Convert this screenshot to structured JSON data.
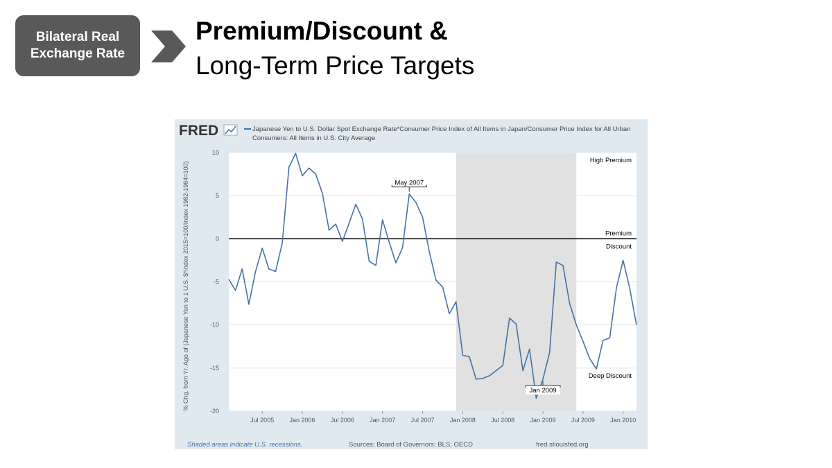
{
  "header": {
    "tag": "Bilateral Real Exchange Rate",
    "title": "Premium/Discount &",
    "subtitle": "Long-Term Price Targets"
  },
  "chart_data": {
    "type": "line",
    "logo": "FRED",
    "ylabel": "% Chg. from Yr. Ago of (Japanese Yen to 1 U.S. $*Index 2015=100/Index 1982-1984=100)",
    "x": [
      "2005-02",
      "2005-03",
      "2005-04",
      "2005-05",
      "2005-06",
      "2005-07",
      "2005-08",
      "2005-09",
      "2005-10",
      "2005-11",
      "2005-12",
      "2006-01",
      "2006-02",
      "2006-03",
      "2006-04",
      "2006-05",
      "2006-06",
      "2006-07",
      "2006-08",
      "2006-09",
      "2006-10",
      "2006-11",
      "2006-12",
      "2007-01",
      "2007-02",
      "2007-03",
      "2007-04",
      "2007-05",
      "2007-06",
      "2007-07",
      "2007-08",
      "2007-09",
      "2007-10",
      "2007-11",
      "2007-12",
      "2008-01",
      "2008-02",
      "2008-03",
      "2008-04",
      "2008-05",
      "2008-06",
      "2008-07",
      "2008-08",
      "2008-09",
      "2008-10",
      "2008-11",
      "2008-12",
      "2009-01",
      "2009-02",
      "2009-03",
      "2009-04",
      "2009-05",
      "2009-06",
      "2009-07",
      "2009-08",
      "2009-09",
      "2009-10",
      "2009-11",
      "2009-12",
      "2010-01",
      "2010-02",
      "2010-03"
    ],
    "series": [
      {
        "name": "Japanese Yen to U.S. Dollar Spot Exchange Rate*Consumer Price Index of All Items in Japan/Consumer Price Index for All Urban Consumers: All Items in U.S. City Average",
        "color": "#4572a7",
        "values": [
          -4.7,
          -6.0,
          -3.5,
          -7.6,
          -3.8,
          -1.1,
          -3.5,
          -3.8,
          -0.5,
          8.3,
          9.9,
          7.3,
          8.2,
          7.5,
          5.3,
          1.0,
          1.7,
          -0.3,
          1.8,
          4.0,
          2.3,
          -2.6,
          -3.1,
          2.2,
          -0.4,
          -2.8,
          -1.0,
          5.2,
          4.2,
          2.5,
          -1.5,
          -4.8,
          -5.6,
          -8.7,
          -7.3,
          -13.5,
          -13.7,
          -16.3,
          -16.2,
          -15.9,
          -15.3,
          -14.7,
          -9.2,
          -9.9,
          -15.3,
          -12.8,
          -18.5,
          -16.3,
          -13.2,
          -2.7,
          -3.1,
          -7.5,
          -10.0,
          -11.9,
          -13.9,
          -15.1,
          -11.8,
          -11.5,
          -5.7,
          -2.5,
          -5.8,
          -10.0
        ]
      }
    ],
    "xlim": [
      "2005-02",
      "2010-03"
    ],
    "xticks": [
      {
        "value": "2005-07",
        "label": "Jul 2005"
      },
      {
        "value": "2006-01",
        "label": "Jan 2006"
      },
      {
        "value": "2006-07",
        "label": "Jul 2006"
      },
      {
        "value": "2007-01",
        "label": "Jan 2007"
      },
      {
        "value": "2007-07",
        "label": "Jul 2007"
      },
      {
        "value": "2008-01",
        "label": "Jan 2008"
      },
      {
        "value": "2008-07",
        "label": "Jul 2008"
      },
      {
        "value": "2009-01",
        "label": "Jan 2009"
      },
      {
        "value": "2009-07",
        "label": "Jul 2009"
      },
      {
        "value": "2010-01",
        "label": "Jan 2010"
      }
    ],
    "ylim": [
      -20,
      10
    ],
    "yticks": [
      10,
      5,
      0,
      -5,
      -10,
      -15,
      -20
    ],
    "grid": true,
    "reference_line": {
      "value": 0,
      "color": "#000000"
    },
    "recessions": [
      {
        "start": "2007-12",
        "end": "2009-06"
      }
    ],
    "recession_color": "#e1e1e1",
    "annotations": [
      {
        "text": "May 2007",
        "x": "2007-05"
      },
      {
        "text": "Jan 2009",
        "x": "2009-01"
      }
    ],
    "zone_labels": [
      "High Premium",
      "Premium",
      "Discount",
      "Deep Discount"
    ],
    "footer": {
      "note": "Shaded areas indicate U.S. recessions.",
      "sources": "Sources: Board of Governors; BLS; OECD",
      "site": "fred.stlouisfed.org"
    }
  }
}
